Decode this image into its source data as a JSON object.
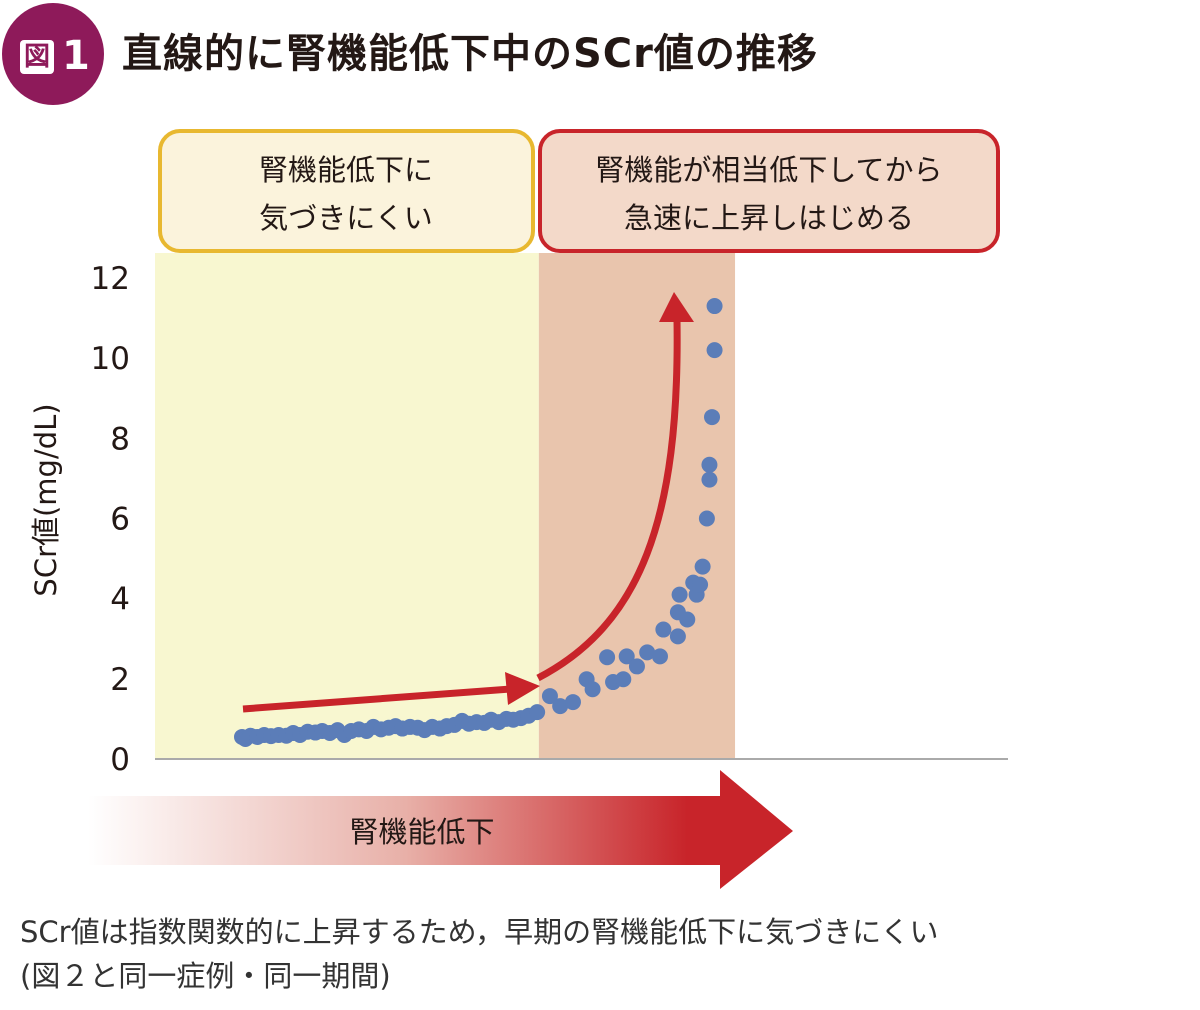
{
  "figure": {
    "badge_icon_label": "図",
    "badge_number": "1",
    "title": "直線的に腎機能低下中のSCr値の推移",
    "caption_line1": "SCr値は指数関数的に上昇するため，早期の腎機能低下に気づきにくい",
    "caption_line2": "(図２と同一症例・同一期間)"
  },
  "callouts": {
    "left_line1": "腎機能低下に",
    "left_line2": "気づきにくい",
    "right_line1": "腎機能が相当低下してから",
    "right_line2": "急速に上昇しはじめる"
  },
  "bottom_arrow_label": "腎機能低下",
  "colors": {
    "points": "#5b7db8",
    "arrow": "#c8242a",
    "early_region": "#f8f7d0",
    "late_region": "#e9c5ad",
    "left_box_border": "#e8b830",
    "right_box_border": "#c8242a",
    "badge": "#8e1a5a"
  },
  "chart_data": {
    "type": "scatter",
    "ylabel": "SCr値(mg/dL)",
    "xlabel": "",
    "ylim": [
      0,
      12
    ],
    "yticks": [
      "0",
      "2",
      "4",
      "6",
      "8",
      "10",
      "12"
    ],
    "xlim": [
      0,
      100
    ],
    "x_ticks_shown": false,
    "grid": false,
    "shaded_regions": [
      {
        "from": 0,
        "to": 45,
        "color": "#f8f7d0"
      },
      {
        "from": 45,
        "to": 68,
        "color": "#e9c5ad"
      }
    ],
    "points": [
      [
        10.2,
        0.55
      ],
      [
        10.6,
        0.5
      ],
      [
        11.2,
        0.58
      ],
      [
        12.0,
        0.55
      ],
      [
        12.8,
        0.6
      ],
      [
        13.6,
        0.57
      ],
      [
        14.5,
        0.6
      ],
      [
        15.4,
        0.58
      ],
      [
        16.2,
        0.65
      ],
      [
        17.0,
        0.6
      ],
      [
        17.9,
        0.68
      ],
      [
        18.8,
        0.66
      ],
      [
        19.6,
        0.7
      ],
      [
        20.5,
        0.65
      ],
      [
        21.4,
        0.72
      ],
      [
        22.2,
        0.6
      ],
      [
        23.0,
        0.7
      ],
      [
        23.9,
        0.74
      ],
      [
        24.8,
        0.7
      ],
      [
        25.6,
        0.8
      ],
      [
        26.5,
        0.74
      ],
      [
        27.4,
        0.78
      ],
      [
        28.2,
        0.82
      ],
      [
        29.0,
        0.76
      ],
      [
        29.9,
        0.8
      ],
      [
        30.8,
        0.78
      ],
      [
        31.6,
        0.72
      ],
      [
        32.5,
        0.8
      ],
      [
        33.4,
        0.76
      ],
      [
        34.2,
        0.82
      ],
      [
        35.1,
        0.85
      ],
      [
        36.0,
        0.95
      ],
      [
        36.8,
        0.88
      ],
      [
        37.7,
        0.92
      ],
      [
        38.6,
        0.9
      ],
      [
        39.4,
        0.98
      ],
      [
        40.3,
        0.92
      ],
      [
        41.2,
        1.0
      ],
      [
        42.0,
        0.98
      ],
      [
        42.9,
        1.02
      ],
      [
        43.8,
        1.08
      ],
      [
        44.8,
        1.17
      ],
      [
        46.3,
        1.57
      ],
      [
        47.5,
        1.32
      ],
      [
        49.0,
        1.42
      ],
      [
        50.6,
        1.99
      ],
      [
        51.3,
        1.74
      ],
      [
        53.0,
        2.54
      ],
      [
        53.7,
        1.92
      ],
      [
        54.9,
        1.99
      ],
      [
        55.3,
        2.56
      ],
      [
        56.5,
        2.31
      ],
      [
        57.7,
        2.66
      ],
      [
        59.2,
        2.56
      ],
      [
        59.6,
        3.23
      ],
      [
        61.3,
        3.06
      ],
      [
        61.3,
        3.66
      ],
      [
        62.4,
        3.48
      ],
      [
        61.5,
        4.1
      ],
      [
        63.5,
        4.1
      ],
      [
        63.1,
        4.4
      ],
      [
        63.9,
        4.35
      ],
      [
        64.2,
        4.8
      ],
      [
        64.7,
        6.0
      ],
      [
        65.0,
        6.97
      ],
      [
        65.0,
        7.34
      ],
      [
        65.3,
        8.53
      ],
      [
        65.6,
        10.2
      ],
      [
        65.6,
        11.3
      ]
    ],
    "annotations": [
      "腎機能低下に気づきにくい",
      "腎機能が相当低下してから急速に上昇しはじめる",
      "腎機能低下"
    ]
  }
}
